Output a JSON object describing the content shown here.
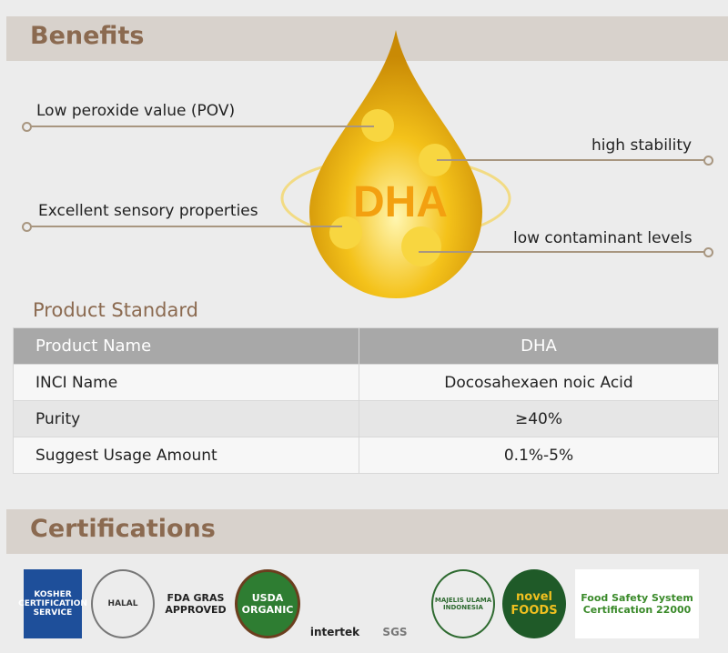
{
  "benefits": {
    "title": "Benefits",
    "center": "DHA",
    "items": [
      "Low peroxide value (POV)",
      "high stability",
      "Excellent sensory properties",
      "low contaminant levels"
    ]
  },
  "standard": {
    "title": "Product Standard",
    "header": [
      "Product  Name",
      "DHA"
    ],
    "rows": [
      [
        "INCI Name",
        "Docosahexaen noic Acid"
      ],
      [
        "Purity",
        "≥40%"
      ],
      [
        "Suggest  Usage Amount",
        "0.1%-5%"
      ]
    ]
  },
  "certifications": {
    "title": "Certifications",
    "logos": [
      "KOSHER CERTIFICATION SERVICE",
      "HALAL",
      "FDA GRAS APPROVED",
      "USDA ORGANIC",
      "intertek",
      "SGS",
      "MAJELIS ULAMA INDONESIA",
      "novel FOODS",
      "Food Safety System Certification 22000"
    ]
  }
}
